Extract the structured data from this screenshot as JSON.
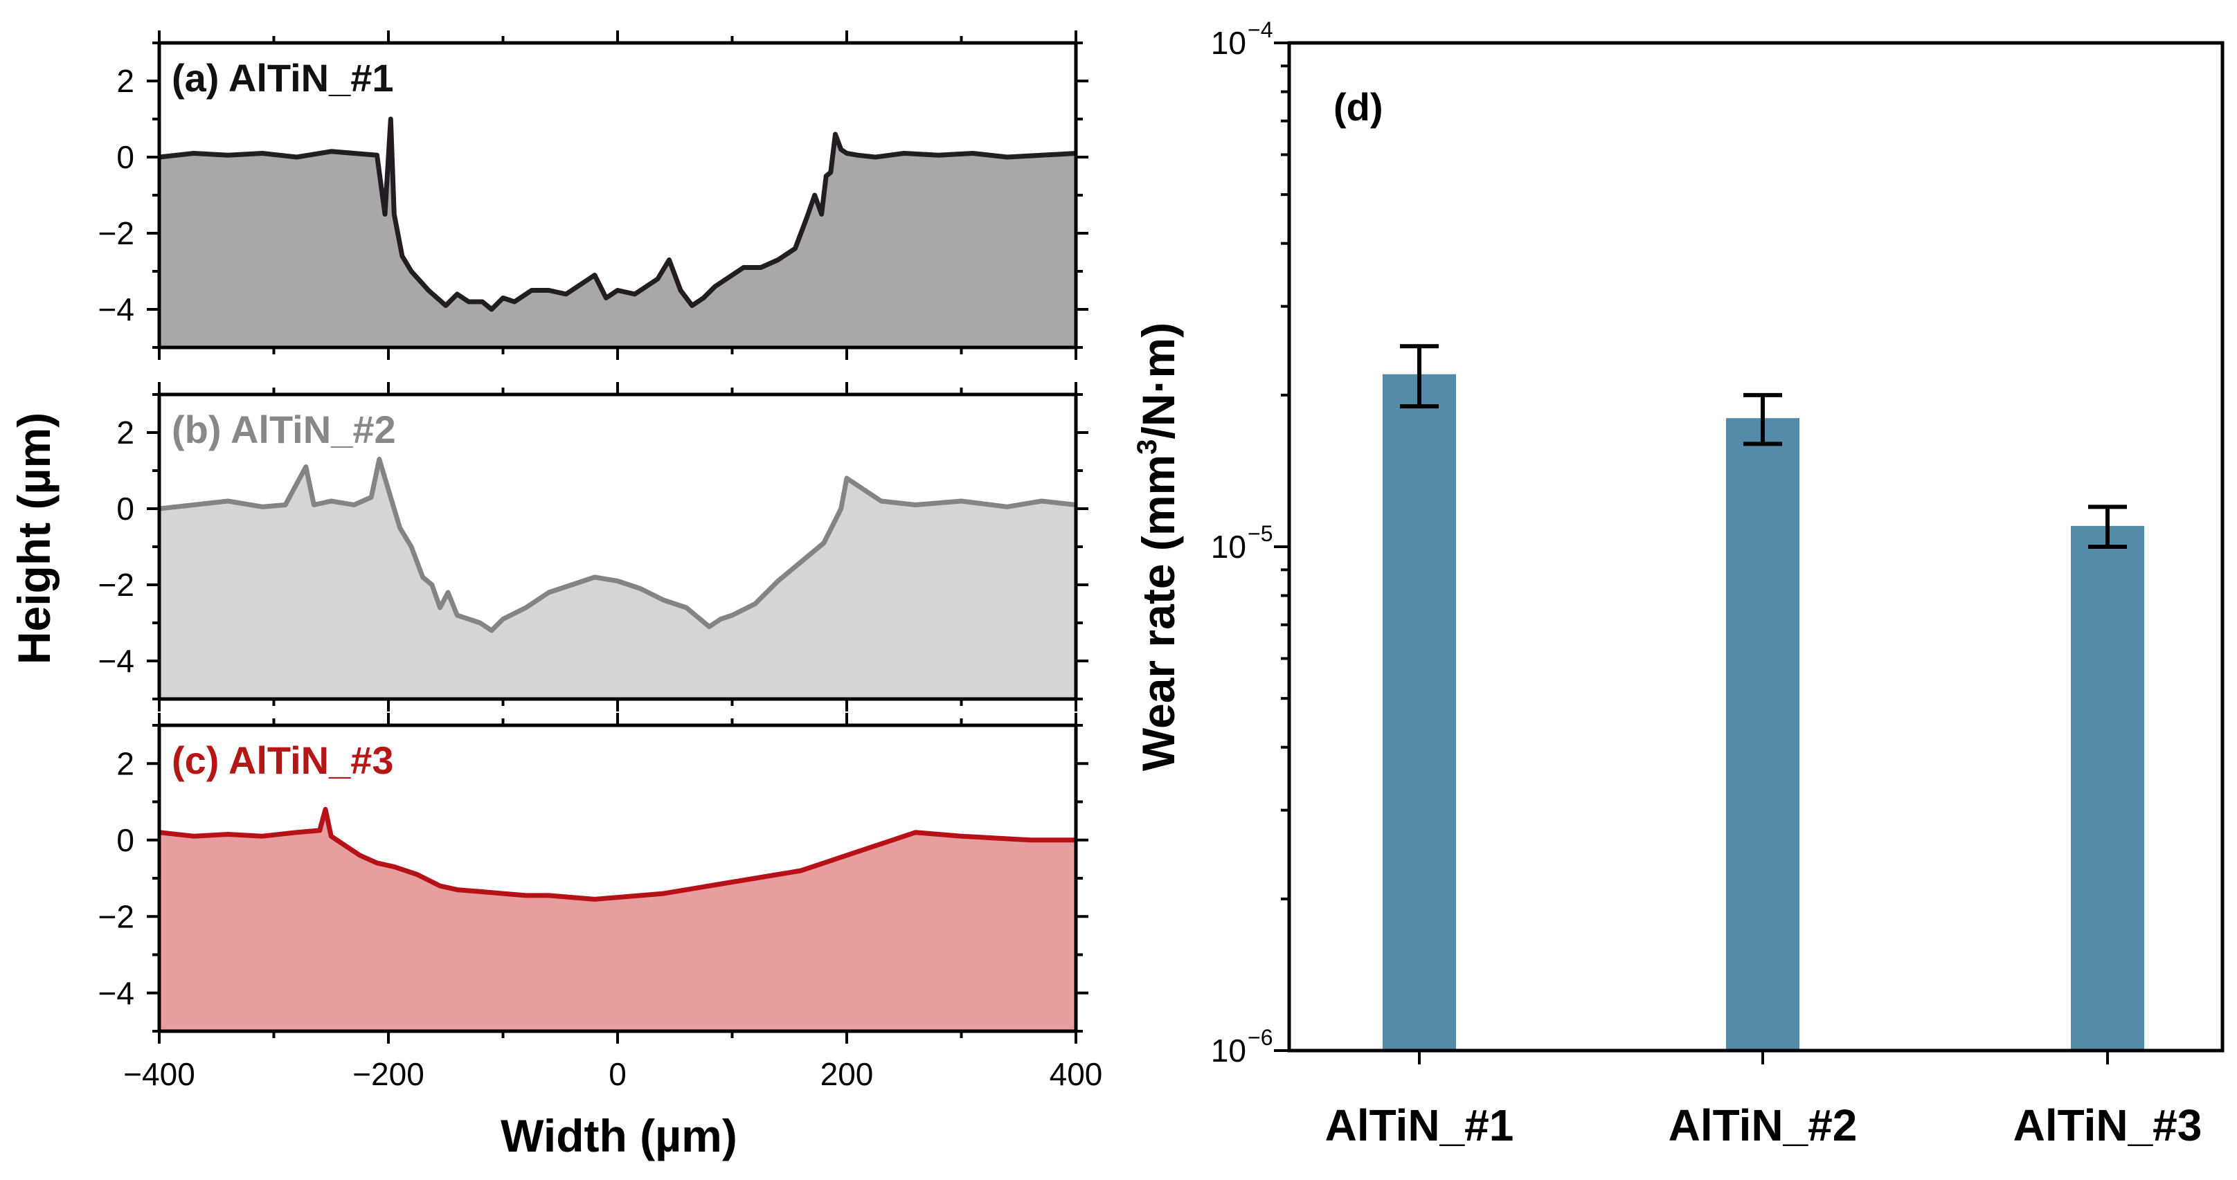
{
  "chart_data": [
    {
      "type": "area",
      "panel": "a",
      "label": "(a) AlTiN_#1",
      "label_color": "#111111",
      "line_color": "#231c22",
      "fill_color": "#a9a7a8",
      "xlabel": "Width (µm)",
      "ylabel": "Height (µm)",
      "xlim": [
        -400,
        400
      ],
      "ylim": [
        -5,
        3
      ],
      "x": [
        -400,
        -370,
        -340,
        -310,
        -280,
        -250,
        -230,
        -210,
        -203,
        -198,
        -195,
        -188,
        -180,
        -165,
        -150,
        -140,
        -130,
        -118,
        -110,
        -100,
        -90,
        -75,
        -60,
        -45,
        -30,
        -20,
        -10,
        0,
        15,
        25,
        35,
        45,
        55,
        65,
        75,
        85,
        95,
        110,
        125,
        140,
        155,
        165,
        172,
        178,
        182,
        186,
        190,
        195,
        200,
        210,
        225,
        250,
        280,
        310,
        340,
        370,
        400
      ],
      "y": [
        0.0,
        0.1,
        0.05,
        0.1,
        0.0,
        0.15,
        0.1,
        0.05,
        -1.5,
        1.0,
        -1.5,
        -2.6,
        -3.0,
        -3.5,
        -3.9,
        -3.6,
        -3.8,
        -3.8,
        -4.0,
        -3.7,
        -3.8,
        -3.5,
        -3.5,
        -3.6,
        -3.3,
        -3.1,
        -3.7,
        -3.5,
        -3.6,
        -3.4,
        -3.2,
        -2.7,
        -3.5,
        -3.9,
        -3.7,
        -3.4,
        -3.2,
        -2.9,
        -2.9,
        -2.7,
        -2.4,
        -1.6,
        -1.0,
        -1.5,
        -0.5,
        -0.4,
        0.6,
        0.2,
        0.1,
        0.05,
        0.0,
        0.1,
        0.05,
        0.1,
        0.0,
        0.05,
        0.1
      ],
      "yticks": [
        -4,
        -2,
        0,
        2
      ]
    },
    {
      "type": "area",
      "panel": "b",
      "label": "(b) AlTiN_#2",
      "label_color": "#888888",
      "line_color": "#848484",
      "fill_color": "#d4d5d7",
      "xlim": [
        -400,
        400
      ],
      "ylim": [
        -5,
        3
      ],
      "x": [
        -400,
        -370,
        -340,
        -310,
        -290,
        -272,
        -265,
        -250,
        -230,
        -215,
        -208,
        -200,
        -190,
        -180,
        -170,
        -162,
        -155,
        -148,
        -140,
        -130,
        -120,
        -110,
        -100,
        -80,
        -60,
        -40,
        -20,
        0,
        20,
        40,
        60,
        80,
        90,
        100,
        120,
        140,
        160,
        180,
        190,
        195,
        200,
        230,
        260,
        300,
        340,
        370,
        400
      ],
      "y": [
        0.0,
        0.1,
        0.2,
        0.05,
        0.1,
        1.1,
        0.1,
        0.2,
        0.1,
        0.3,
        1.3,
        0.5,
        -0.5,
        -1.0,
        -1.8,
        -2.0,
        -2.6,
        -2.2,
        -2.8,
        -2.9,
        -3.0,
        -3.2,
        -2.9,
        -2.6,
        -2.2,
        -2.0,
        -1.8,
        -1.9,
        -2.1,
        -2.4,
        -2.6,
        -3.1,
        -2.9,
        -2.8,
        -2.5,
        -1.9,
        -1.4,
        -0.9,
        -0.3,
        0.0,
        0.8,
        0.2,
        0.1,
        0.2,
        0.05,
        0.2,
        0.1
      ],
      "yticks": [
        -4,
        -2,
        0,
        2
      ]
    },
    {
      "type": "area",
      "panel": "c",
      "label": "(c) AlTiN_#3",
      "label_color": "#b51616",
      "line_color": "#b51116",
      "fill_color": "#e89e9e",
      "xlim": [
        -400,
        400
      ],
      "ylim": [
        -5,
        3
      ],
      "x": [
        -400,
        -370,
        -340,
        -310,
        -280,
        -260,
        -255,
        -250,
        -240,
        -225,
        -210,
        -195,
        -175,
        -155,
        -140,
        -120,
        -100,
        -80,
        -60,
        -40,
        -20,
        0,
        20,
        40,
        60,
        80,
        100,
        120,
        140,
        160,
        180,
        200,
        220,
        240,
        260,
        280,
        300,
        330,
        360,
        400
      ],
      "y": [
        0.2,
        0.1,
        0.15,
        0.1,
        0.2,
        0.25,
        0.8,
        0.1,
        -0.1,
        -0.4,
        -0.6,
        -0.7,
        -0.9,
        -1.2,
        -1.3,
        -1.35,
        -1.4,
        -1.45,
        -1.45,
        -1.5,
        -1.55,
        -1.5,
        -1.45,
        -1.4,
        -1.3,
        -1.2,
        -1.1,
        -1.0,
        -0.9,
        -0.8,
        -0.6,
        -0.4,
        -0.2,
        0.0,
        0.2,
        0.15,
        0.1,
        0.05,
        0.0,
        0.0
      ],
      "yticks": [
        -4,
        -2,
        0,
        2
      ],
      "xticks": [
        -400,
        -200,
        0,
        200,
        400
      ],
      "xticklabels": [
        "−400",
        "−200",
        "0",
        "200",
        "400"
      ]
    },
    {
      "type": "bar",
      "panel": "d",
      "label": "(d)",
      "yscale": "log",
      "ylim": [
        1e-06,
        0.0001
      ],
      "categories": [
        "AlTiN_#1",
        "AlTiN_#2",
        "AlTiN_#3"
      ],
      "values": [
        2.2e-05,
        1.8e-05,
        1.1e-05
      ],
      "errors": [
        [
          1.9e-05,
          2.5e-05
        ],
        [
          1.6e-05,
          2e-05
        ],
        [
          1e-05,
          1.2e-05
        ]
      ],
      "bar_color": "#548ba8",
      "ylabel_main": "Wear rate (mm",
      "ylabel_sup": "3",
      "ylabel_tail": "/N·m)",
      "ytick_labels": [
        {
          "base": "10",
          "exp": "−6",
          "value": 1e-06
        },
        {
          "base": "10",
          "exp": "−5",
          "value": 1e-05
        },
        {
          "base": "10",
          "exp": "−4",
          "value": 0.0001
        }
      ]
    }
  ]
}
